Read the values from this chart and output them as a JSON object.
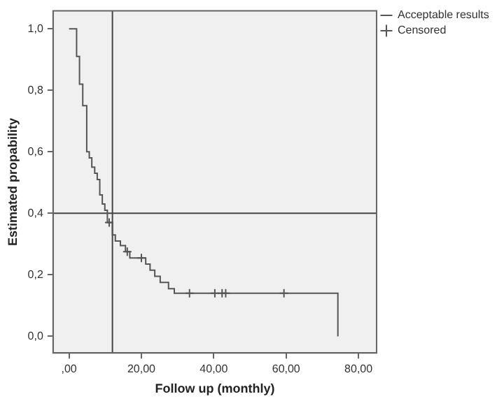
{
  "chart_data": {
    "type": "step",
    "xlabel": "Follow up (monthly)",
    "ylabel": "Estimated propability",
    "series": [
      {
        "name": "Acceptable results",
        "type": "step",
        "color": "#555555",
        "x": [
          0,
          2.1,
          2.9,
          3.8,
          4.9,
          5.6,
          6.3,
          7.1,
          7.8,
          8.5,
          9.2,
          9.9,
          10.6,
          12,
          12.8,
          14.2,
          15.6,
          16.8,
          21.2,
          22.4,
          23.7,
          25.2,
          27.5,
          29.1,
          74.3
        ],
        "values": [
          1,
          0.91,
          0.82,
          0.75,
          0.6,
          0.58,
          0.55,
          0.53,
          0.51,
          0.46,
          0.43,
          0.41,
          0.37,
          0.33,
          0.31,
          0.295,
          0.275,
          0.255,
          0.235,
          0.215,
          0.195,
          0.175,
          0.155,
          0.14,
          0
        ]
      },
      {
        "name": "Censored",
        "type": "scatter",
        "marker": "cross",
        "color": "#555555",
        "x": [
          11.1,
          16.1,
          20,
          33.3,
          40.3,
          42.3,
          43.3,
          59.4
        ],
        "values": [
          0.37,
          0.275,
          0.255,
          0.14,
          0.14,
          0.14,
          0.14,
          0.14
        ]
      }
    ],
    "xlim": [
      -4.4,
      85
    ],
    "xticks": [
      {
        "value": 0,
        "label": ",00"
      },
      {
        "value": 20,
        "label": "20,00"
      },
      {
        "value": 40,
        "label": "40,00"
      },
      {
        "value": 60,
        "label": "60,00"
      },
      {
        "value": 80,
        "label": "80,00"
      }
    ],
    "ylim": [
      -0.054,
      1.058
    ],
    "yticks": [
      {
        "value": 0,
        "label": "0,0"
      },
      {
        "value": 0.2,
        "label": "0,2"
      },
      {
        "value": 0.4,
        "label": "0,4"
      },
      {
        "value": 0.6,
        "label": "0,6"
      },
      {
        "value": 0.8,
        "label": "0,8"
      },
      {
        "value": 1,
        "label": "1,0"
      }
    ],
    "ref_lines": [
      {
        "axis": "x",
        "value": 12,
        "color": "#444444"
      },
      {
        "axis": "y",
        "value": 0.4,
        "color": "#444444"
      }
    ],
    "grid": false,
    "legend": "top right"
  }
}
